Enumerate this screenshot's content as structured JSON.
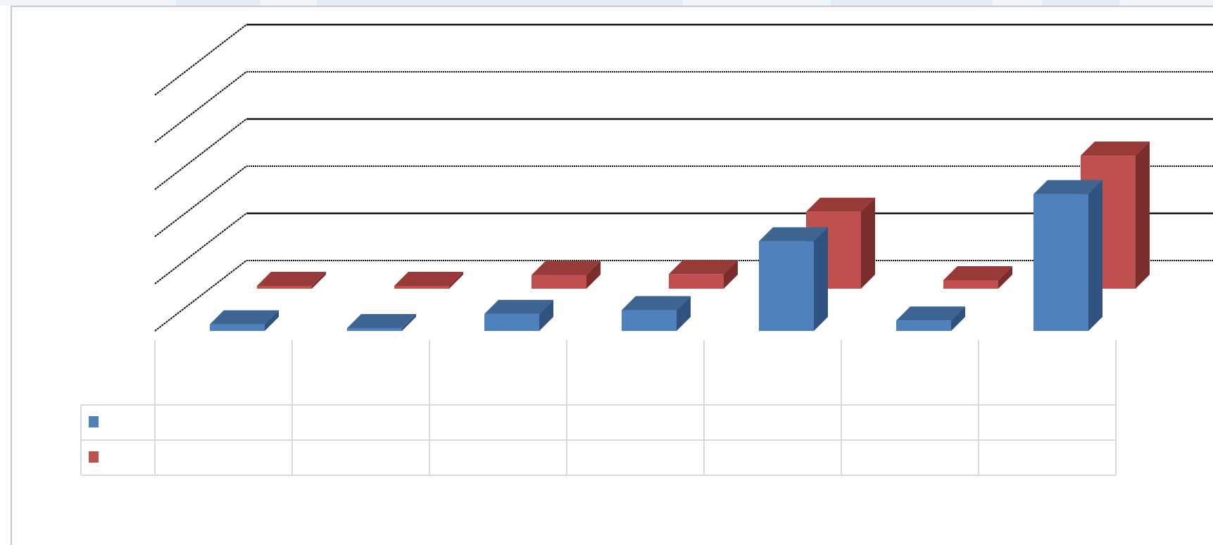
{
  "chart_data": {
    "type": "bar",
    "title": "",
    "xlabel": "",
    "ylabel": "",
    "categories": [
      "",
      "",
      "",
      "",
      "",
      "",
      ""
    ],
    "series": [
      {
        "values": [
          0.14,
          0.05,
          0.36,
          0.44,
          1.9,
          0.22,
          2.9
        ]
      },
      {
        "values": [
          0.06,
          0.01,
          0.29,
          0.31,
          1.63,
          0.18,
          2.82
        ]
      }
    ],
    "ylim": [
      0,
      5
    ],
    "grid": true,
    "legend": "data-table",
    "table_rows": [
      {
        "cells": [
          "",
          "",
          "",
          "",
          "",
          "",
          ""
        ]
      },
      {
        "cells": [
          "",
          "",
          "",
          "",
          "",
          "",
          ""
        ]
      }
    ],
    "colors": {
      "series1_front": "#4f81bd",
      "series1_top": "#3e6592",
      "series1_side": "#2f5280",
      "series2_front": "#c0504d",
      "series2_top": "#973a38",
      "series2_side": "#7a2d2b"
    }
  }
}
